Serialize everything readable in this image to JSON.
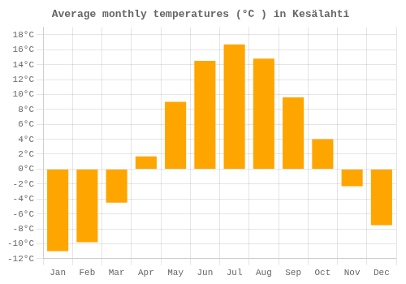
{
  "chart_data": {
    "type": "bar",
    "title": "Average monthly temperatures (°C ) in Kesälahti",
    "categories": [
      "Jan",
      "Feb",
      "Mar",
      "Apr",
      "May",
      "Jun",
      "Jul",
      "Aug",
      "Sep",
      "Oct",
      "Nov",
      "Dec"
    ],
    "values": [
      -11,
      -9.8,
      -4.5,
      1.7,
      9.0,
      14.5,
      16.7,
      14.8,
      9.6,
      4.0,
      -2.3,
      -7.5
    ],
    "color": "#FFA500",
    "ylim": [
      -12,
      19
    ],
    "yticks": [
      {
        "value": -12,
        "label": "-12°C"
      },
      {
        "value": -10,
        "label": "-10°C"
      },
      {
        "value": -8,
        "label": "-8°C"
      },
      {
        "value": -6,
        "label": "-6°C"
      },
      {
        "value": -4,
        "label": "-4°C"
      },
      {
        "value": -2,
        "label": "-2°C"
      },
      {
        "value": 0,
        "label": "0°C"
      },
      {
        "value": 2,
        "label": "2°C"
      },
      {
        "value": 4,
        "label": "4°C"
      },
      {
        "value": 6,
        "label": "6°C"
      },
      {
        "value": 8,
        "label": "8°C"
      },
      {
        "value": 10,
        "label": "10°C"
      },
      {
        "value": 12,
        "label": "12°C"
      },
      {
        "value": 14,
        "label": "14°C"
      },
      {
        "value": 16,
        "label": "16°C"
      },
      {
        "value": 18,
        "label": "18°C"
      }
    ],
    "grid": true
  }
}
